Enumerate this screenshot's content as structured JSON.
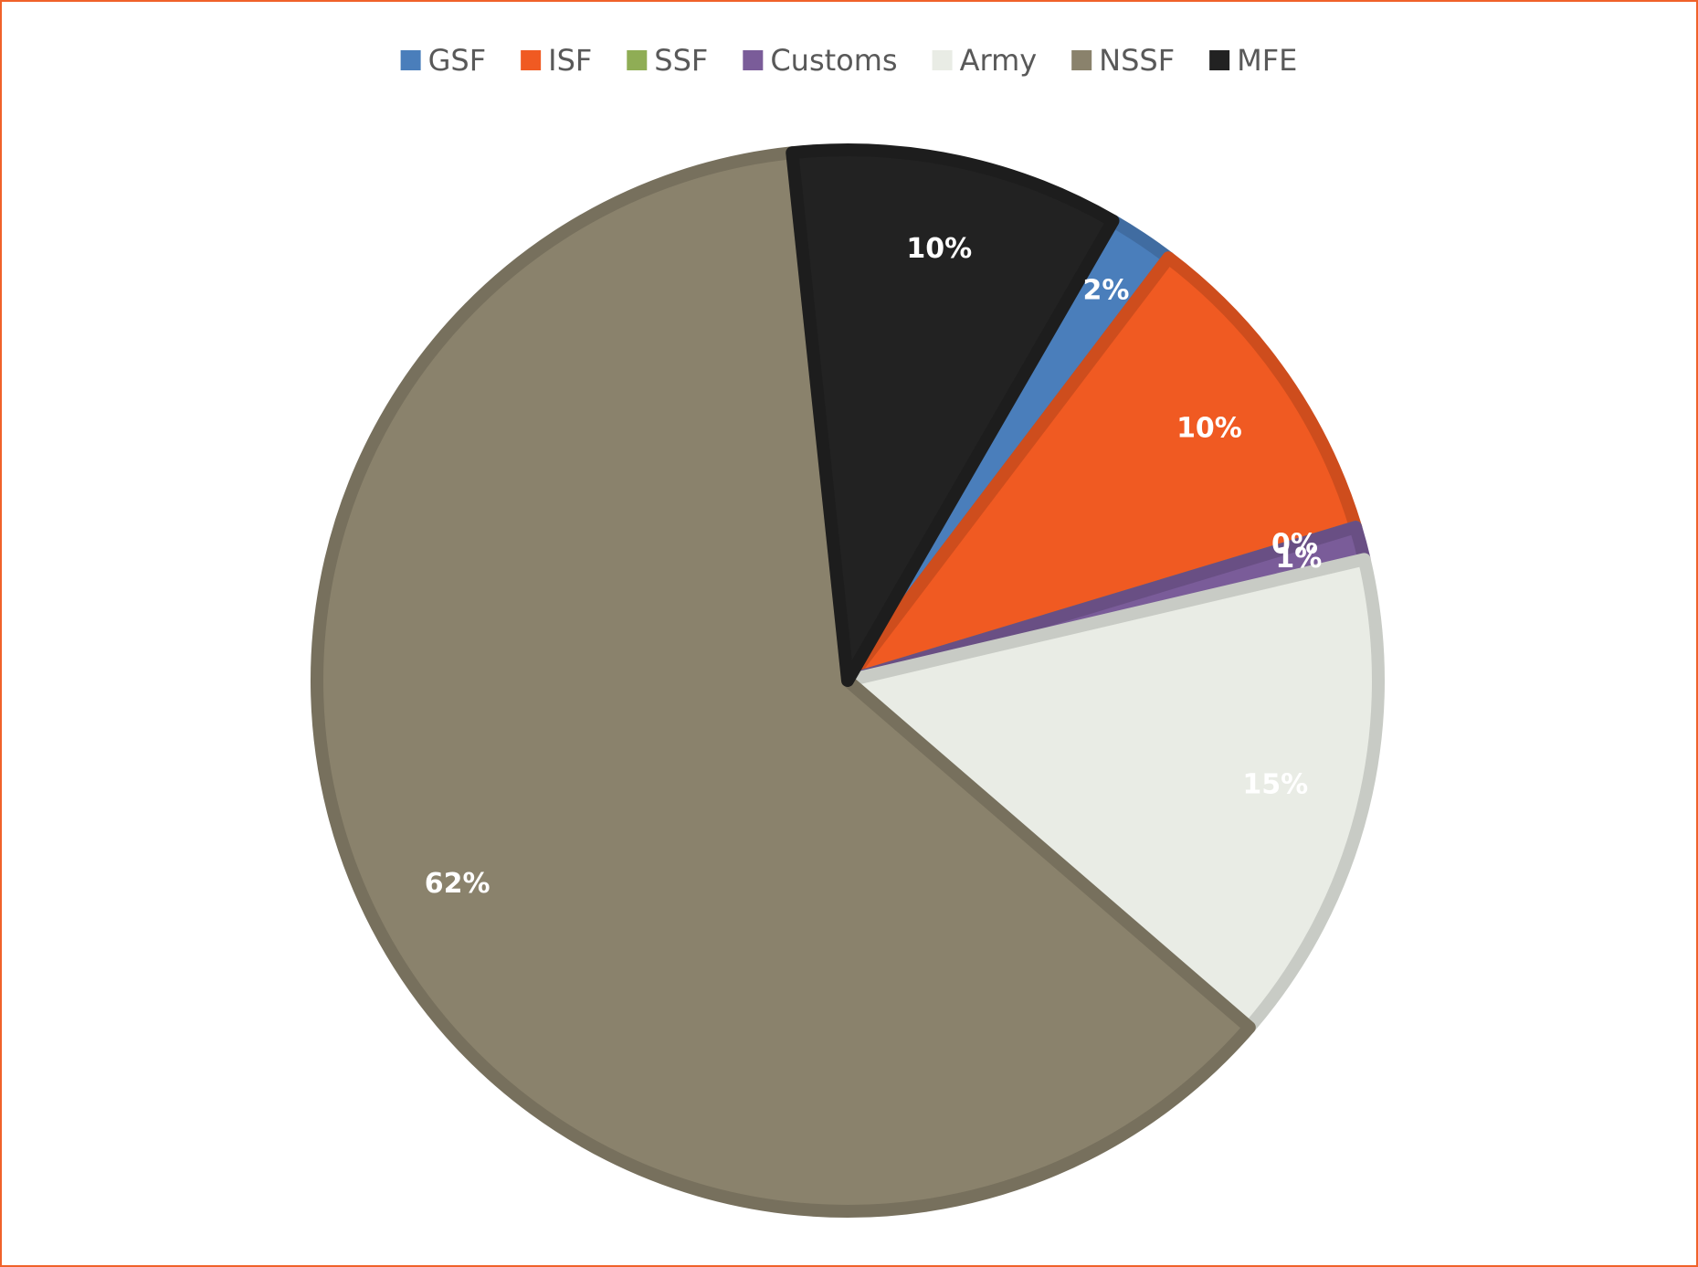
{
  "chart_data": {
    "type": "pie",
    "categories": [
      "GSF",
      "ISF",
      "SSF",
      "Customs",
      "Army",
      "NSSF",
      "MFE"
    ],
    "values": [
      2,
      10,
      0,
      1,
      15,
      62,
      10
    ],
    "value_labels": [
      "2%",
      "10%",
      "0%",
      "1%",
      "15%",
      "62%",
      "10%"
    ],
    "colors": [
      "#4a7ebb",
      "#f05a22",
      "#8fad55",
      "#7a5c99",
      "#e9ece5",
      "#8a826c",
      "#222222"
    ],
    "legend": "top"
  }
}
